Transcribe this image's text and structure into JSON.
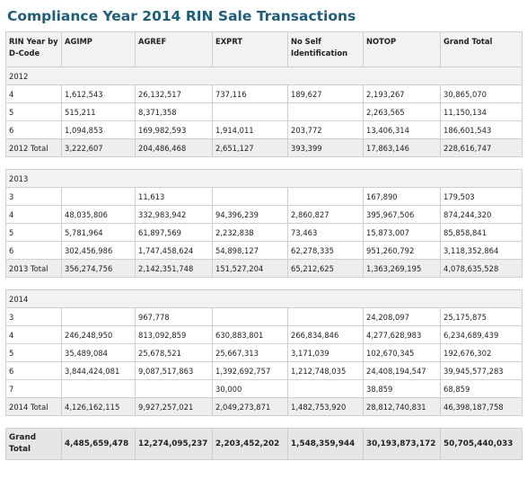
{
  "title": "Compliance Year 2014 RIN Sale Transactions",
  "columns": [
    "RIN Year by D-Code",
    "AGIMP",
    "AGREF",
    "EXPRT",
    "No Self Identification",
    "NOTOP",
    "Grand Total"
  ],
  "sections": [
    {
      "year": "2012",
      "rows": [
        [
          "4",
          "1,612,543",
          "26,132,517",
          "737,116",
          "189,627",
          "2,193,267",
          "30,865,070"
        ],
        [
          "5",
          "515,211",
          "8,371,358",
          "",
          "",
          "2,263,565",
          "11,150,134"
        ],
        [
          "6",
          "1,094,853",
          "169,982,593",
          "1,914,011",
          "203,772",
          "13,406,314",
          "186,601,543"
        ]
      ],
      "total": [
        "2012 Total",
        "3,222,607",
        "204,486,468",
        "2,651,127",
        "393,399",
        "17,863,146",
        "228,616,747"
      ]
    },
    {
      "year": "2013",
      "rows": [
        [
          "3",
          "",
          "11,613",
          "",
          "",
          "167,890",
          "179,503"
        ],
        [
          "4",
          "48,035,806",
          "332,983,942",
          "94,396,239",
          "2,860,827",
          "395,967,506",
          "874,244,320"
        ],
        [
          "5",
          "5,781,964",
          "61,897,569",
          "2,232,838",
          "73,463",
          "15,873,007",
          "85,858,841"
        ],
        [
          "6",
          "302,456,986",
          "1,747,458,624",
          "54,898,127",
          "62,278,335",
          "951,260,792",
          "3,118,352,864"
        ]
      ],
      "total": [
        "2013 Total",
        "356,274,756",
        "2,142,351,748",
        "151,527,204",
        "65,212,625",
        "1,363,269,195",
        "4,078,635,528"
      ]
    },
    {
      "year": "2014",
      "rows": [
        [
          "3",
          "",
          "967,778",
          "",
          "",
          "24,208,097",
          "25,175,875"
        ],
        [
          "4",
          "246,248,950",
          "813,092,859",
          "630,883,801",
          "266,834,846",
          "4,277,628,983",
          "6,234,689,439"
        ],
        [
          "5",
          "35,489,084",
          "25,678,521",
          "25,667,313",
          "3,171,039",
          "102,670,345",
          "192,676,302"
        ],
        [
          "6",
          "3,844,424,081",
          "9,087,517,863",
          "1,392,692,757",
          "1,212,748,035",
          "24,408,194,547",
          "39,945,577,283"
        ],
        [
          "7",
          "",
          "",
          "30,000",
          "",
          "38,859",
          "68,859"
        ]
      ],
      "total": [
        "2014 Total",
        "4,126,162,115",
        "9,927,257,021",
        "2,049,273,871",
        "1,482,753,920",
        "28,812,740,831",
        "46,398,187,758"
      ]
    }
  ],
  "grand_total": [
    "Grand Total",
    "4,485,659,478",
    "12,274,095,237",
    "2,203,452,202",
    "1,548,359,944",
    "30,193,873,172",
    "50,705,440,033"
  ]
}
